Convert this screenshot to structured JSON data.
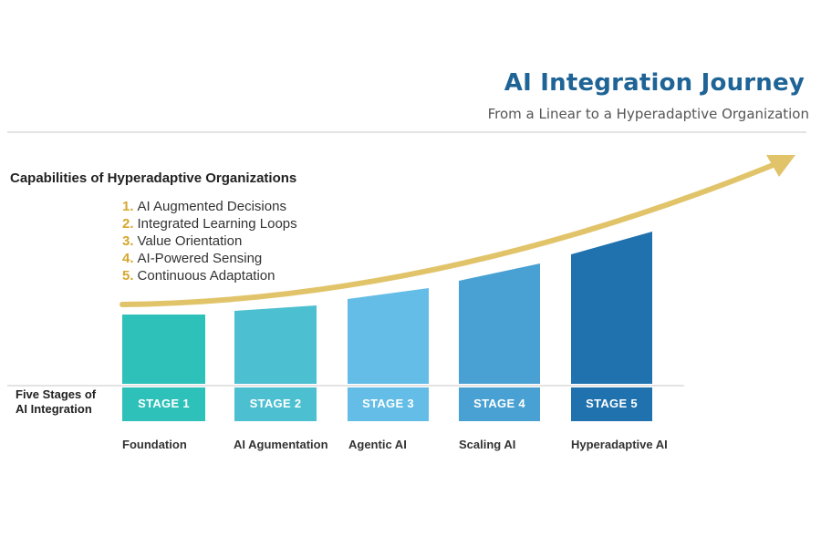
{
  "title": "AI Integration Journey",
  "subtitle": "From a Linear to a Hyperadaptive Organization",
  "capabilities": {
    "heading": "Capabilities of Hyperadaptive Organizations",
    "items": [
      {
        "num": "1.",
        "text": "AI Augmented Decisions"
      },
      {
        "num": "2.",
        "text": "Integrated Learning Loops"
      },
      {
        "num": "3.",
        "text": "Value Orientation"
      },
      {
        "num": "4.",
        "text": "AI-Powered Sensing"
      },
      {
        "num": "5.",
        "text": "Continuous Adaptation"
      }
    ]
  },
  "stages_title": [
    "Five Stages of",
    "AI Integration"
  ],
  "stages": [
    {
      "badge": "STAGE 1",
      "name": "Foundation",
      "color": "#2ec1b9"
    },
    {
      "badge": "STAGE 2",
      "name": "AI Agumentation",
      "color": "#4cc0d0"
    },
    {
      "badge": "STAGE 3",
      "name": "Agentic AI",
      "color": "#63bde6"
    },
    {
      "badge": "STAGE 4",
      "name": "Scaling AI",
      "color": "#49a1d3"
    },
    {
      "badge": "STAGE 5",
      "name": "Hyperadaptive AI",
      "color": "#1f72ae"
    }
  ],
  "colors": {
    "arrow": "#e1c46a",
    "rule": "#e3e3e3",
    "title": "#1f6496",
    "number": "#d6a72e"
  }
}
